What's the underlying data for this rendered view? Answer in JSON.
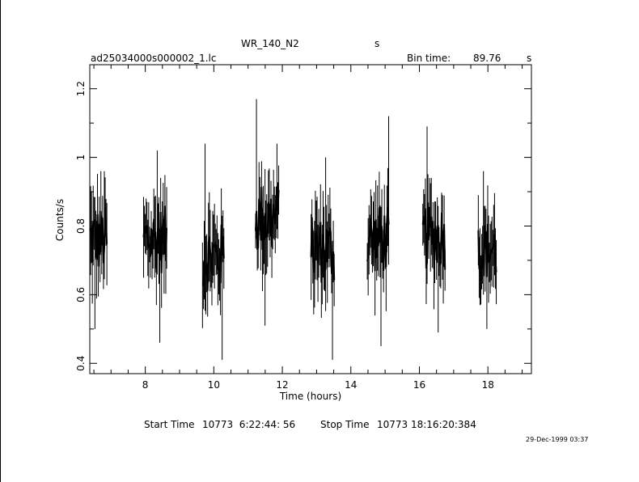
{
  "header": {
    "object": "WR_140_N2",
    "units": "s",
    "file": "ad25034000s000002_1.lc",
    "bin_label": "Bin time:",
    "bin_value": "89.76",
    "bin_units": "s"
  },
  "footer": {
    "start_label": "Start Time",
    "start_value": "10773  6:22:44: 56",
    "stop_label": "Stop Time",
    "stop_value": "10773 18:16:20:384",
    "date": "29-Dec-1999 03:37"
  },
  "chart_data": {
    "type": "line",
    "title": "WR_140_N2",
    "xlabel": "Time (hours)",
    "ylabel": "Counts/s",
    "xlim": [
      6.38,
      19.27
    ],
    "ylim": [
      0.37,
      1.27
    ],
    "xticks": [
      8,
      10,
      12,
      14,
      16,
      18
    ],
    "yticks": [
      0.4,
      0.6,
      0.8,
      1.0,
      1.2
    ],
    "xtick_labels": [
      "8",
      "10",
      "12",
      "14",
      "16",
      "18"
    ],
    "ytick_labels": [
      "0.4",
      "0.6",
      "0.8",
      "1",
      "1.2"
    ],
    "segments": [
      {
        "t_start": 6.38,
        "t_end": 6.9,
        "mean": 0.76,
        "spread": 0.1,
        "min": 0.5,
        "max": 0.96
      },
      {
        "t_start": 7.95,
        "t_end": 8.63,
        "mean": 0.76,
        "spread": 0.1,
        "min": 0.46,
        "max": 1.02
      },
      {
        "t_start": 9.67,
        "t_end": 10.3,
        "mean": 0.71,
        "spread": 0.1,
        "min": 0.41,
        "max": 1.04
      },
      {
        "t_start": 11.22,
        "t_end": 11.9,
        "mean": 0.82,
        "spread": 0.11,
        "min": 0.51,
        "max": 1.17
      },
      {
        "t_start": 12.84,
        "t_end": 13.52,
        "mean": 0.73,
        "spread": 0.1,
        "min": 0.41,
        "max": 1.0
      },
      {
        "t_start": 14.48,
        "t_end": 15.12,
        "mean": 0.76,
        "spread": 0.1,
        "min": 0.45,
        "max": 1.12
      },
      {
        "t_start": 16.1,
        "t_end": 16.75,
        "mean": 0.77,
        "spread": 0.1,
        "min": 0.49,
        "max": 1.09
      },
      {
        "t_start": 17.72,
        "t_end": 18.25,
        "mean": 0.73,
        "spread": 0.09,
        "min": 0.5,
        "max": 0.96
      }
    ]
  }
}
